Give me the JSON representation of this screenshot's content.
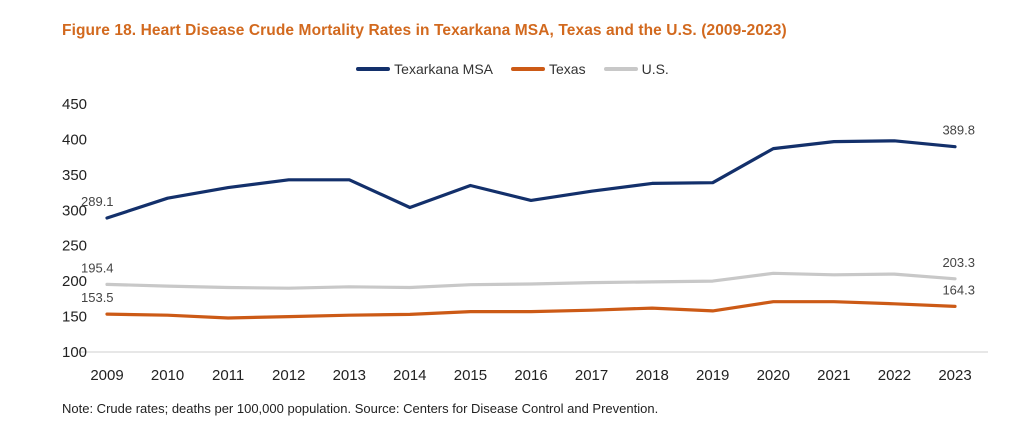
{
  "chart_data": {
    "type": "line",
    "title": "Figure 18. Heart Disease Crude Mortality Rates in Texarkana MSA, Texas and the U.S. (2009-2023)",
    "xlabel": "",
    "ylabel": "",
    "ylim": [
      100,
      450
    ],
    "yticks": [
      "450",
      "400",
      "350",
      "300",
      "250",
      "200",
      "150",
      "100"
    ],
    "ytick_values": [
      450,
      400,
      350,
      300,
      250,
      200,
      150,
      100
    ],
    "categories": [
      "2009",
      "2010",
      "2011",
      "2012",
      "2013",
      "2014",
      "2015",
      "2016",
      "2017",
      "2018",
      "2019",
      "2020",
      "2021",
      "2022",
      "2023"
    ],
    "series": [
      {
        "name": "Texarkana MSA",
        "color": "#13306b",
        "values": [
          289.1,
          317,
          332,
          343,
          343,
          304,
          335,
          314,
          327,
          338,
          339,
          387,
          397,
          398,
          389.8
        ]
      },
      {
        "name": "Texas",
        "color": "#cc5a16",
        "values": [
          153.5,
          152,
          148,
          150,
          152,
          153,
          157,
          157,
          159,
          162,
          158,
          171,
          171,
          168,
          164.3
        ]
      },
      {
        "name": "U.S.",
        "color": "#c8c8c8",
        "values": [
          195.4,
          193,
          191,
          190,
          192,
          191,
          195,
          196,
          198,
          199,
          200,
          211,
          209,
          210,
          203.3
        ]
      }
    ],
    "data_labels": [
      {
        "text": "289.1",
        "series": 0,
        "index": 0
      },
      {
        "text": "389.8",
        "series": 0,
        "index": 14
      },
      {
        "text": "195.4",
        "series": 2,
        "index": 0
      },
      {
        "text": "203.3",
        "series": 2,
        "index": 14
      },
      {
        "text": "153.5",
        "series": 1,
        "index": 0
      },
      {
        "text": "164.3",
        "series": 1,
        "index": 14
      }
    ],
    "legend_position": "top-center",
    "grid": false
  },
  "note": "Note: Crude rates; deaths per 100,000 population. Source: Centers for Disease Control and Prevention."
}
